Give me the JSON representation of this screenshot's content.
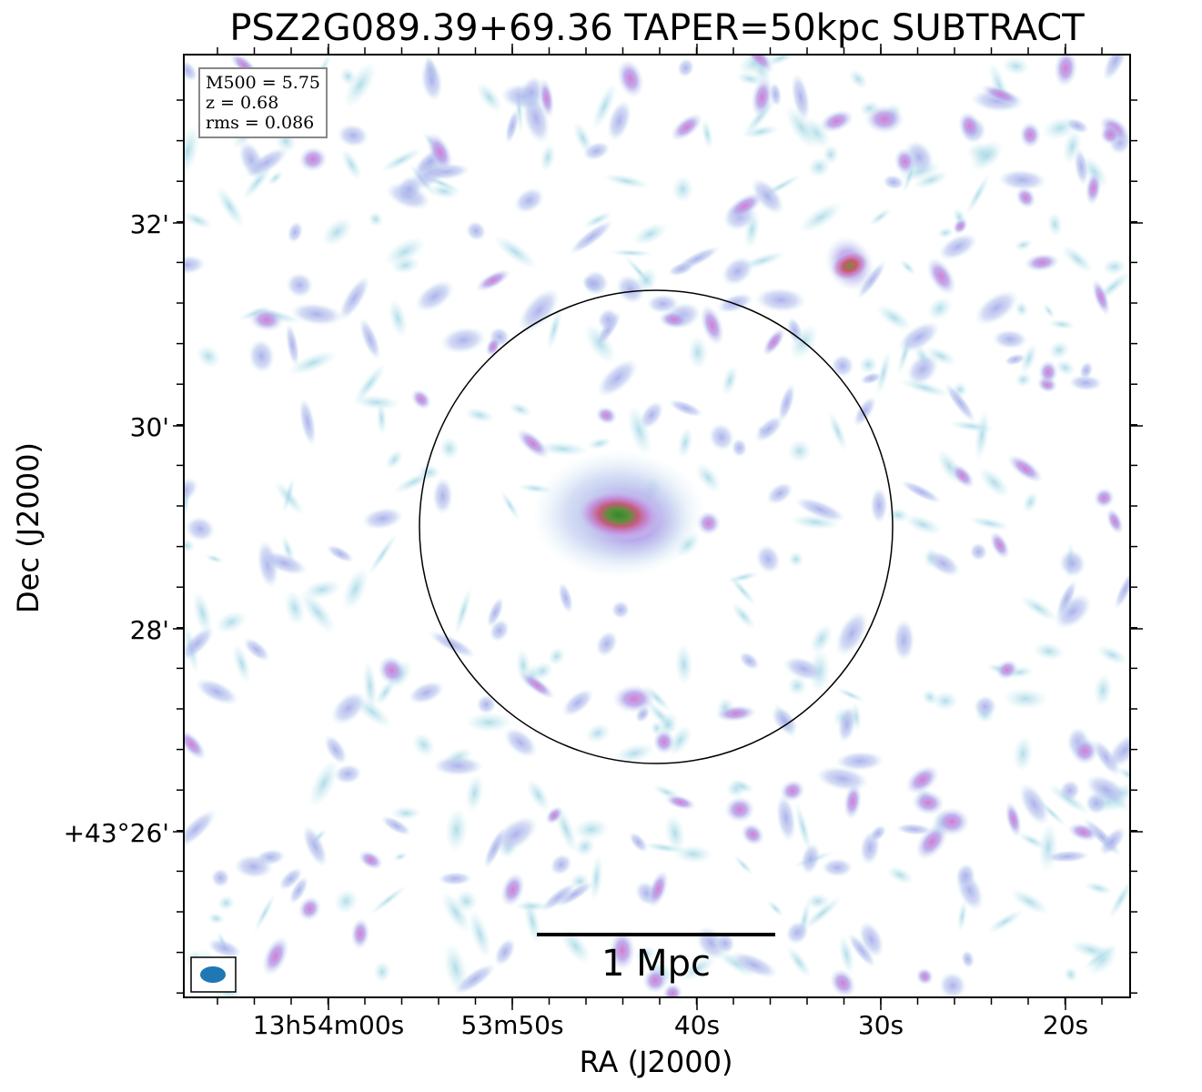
{
  "title": "PSZ2G089.39+69.36 TAPER=50kpc SUBTRACT",
  "info": {
    "m500": "M500 = 5.75",
    "z": "z = 0.68",
    "rms": "rms = 0.086"
  },
  "axes": {
    "xlabel": "RA (J2000)",
    "ylabel": "Dec (J2000)",
    "x_ticks": [
      "13h54m00s",
      "53m50s",
      "40s",
      "30s",
      "20s"
    ],
    "y_ticks": [
      "32'",
      "30'",
      "28'",
      "+43°26'"
    ]
  },
  "scalebar": {
    "label": "1 Mpc"
  },
  "colors": {
    "low": "#b8e0ea",
    "mid": "#b4b4ec",
    "high": "#d98ad6",
    "peak": "#2e8b2e"
  }
}
